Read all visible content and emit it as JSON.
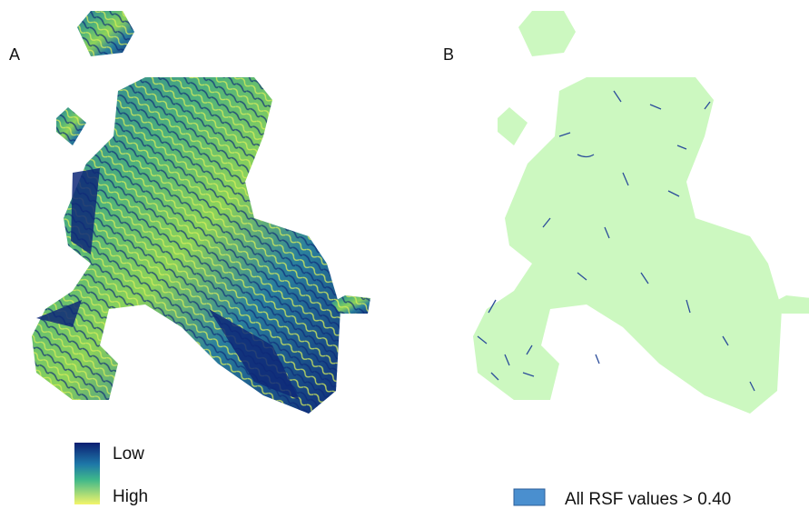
{
  "panels": [
    {
      "label": "A"
    },
    {
      "label": "B"
    }
  ],
  "legend_a": {
    "low": "Low",
    "high": "High"
  },
  "legend_b": {
    "label": "All RSF values > 0.40"
  }
}
